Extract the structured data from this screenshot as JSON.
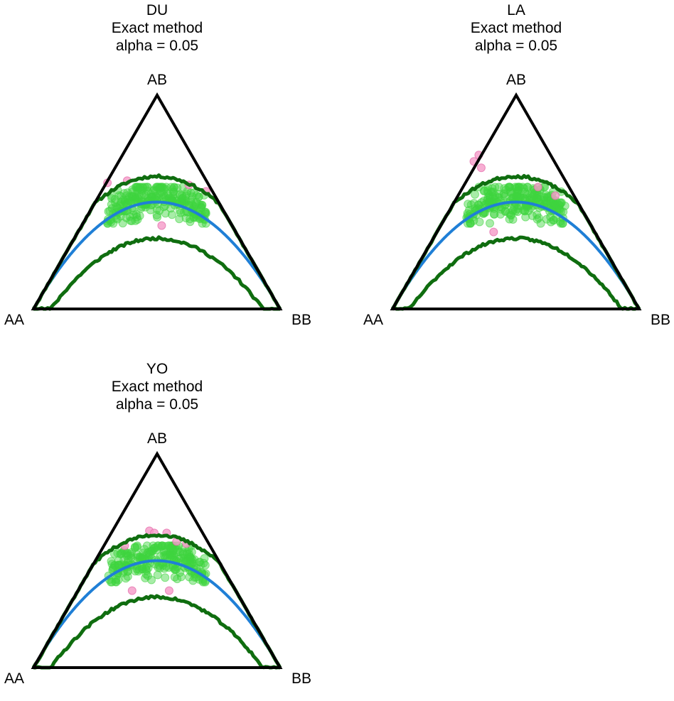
{
  "chart_data": [
    {
      "type": "scatter",
      "subtype": "ternary (de Finetti) plot",
      "population": "DU",
      "title_lines": [
        "DU",
        "Exact method",
        "alpha = 0.05"
      ],
      "vertices": {
        "left": "AA",
        "right": "BB",
        "top": "AB"
      },
      "hwe_curve": true,
      "acceptance_limits": true,
      "seed": 11,
      "point_count": 260,
      "hz_range": [
        0.4,
        0.57
      ],
      "outliers": [
        [
          0.3,
          0.59
        ],
        [
          0.38,
          0.6
        ],
        [
          0.63,
          0.58
        ],
        [
          0.7,
          0.55
        ],
        [
          0.52,
          0.39
        ]
      ],
      "colors": {
        "in_limits": "#3fd43f",
        "outside_limits": "#f59ac8",
        "hwe_curve": "#1f7fd6",
        "limits": "#0f6d0f",
        "triangle": "#000000"
      }
    },
    {
      "type": "scatter",
      "subtype": "ternary (de Finetti) plot",
      "population": "LA",
      "title_lines": [
        "LA",
        "Exact method",
        "alpha = 0.05"
      ],
      "vertices": {
        "left": "AA",
        "right": "BB",
        "top": "AB"
      },
      "hwe_curve": true,
      "acceptance_limits": true,
      "seed": 23,
      "point_count": 260,
      "hz_range": [
        0.4,
        0.57
      ],
      "outliers": [
        [
          0.33,
          0.69
        ],
        [
          0.35,
          0.72
        ],
        [
          0.36,
          0.66
        ],
        [
          0.41,
          0.36
        ],
        [
          0.59,
          0.57
        ],
        [
          0.66,
          0.53
        ]
      ],
      "colors": {
        "in_limits": "#3fd43f",
        "outside_limits": "#f59ac8",
        "hwe_curve": "#1f7fd6",
        "limits": "#0f6d0f",
        "triangle": "#000000"
      }
    },
    {
      "type": "scatter",
      "subtype": "ternary (de Finetti) plot",
      "population": "YO",
      "title_lines": [
        "YO",
        "Exact method",
        "alpha = 0.05"
      ],
      "vertices": {
        "left": "AA",
        "right": "BB",
        "top": "AB"
      },
      "hwe_curve": true,
      "acceptance_limits": true,
      "seed": 37,
      "point_count": 240,
      "hz_range": [
        0.4,
        0.57
      ],
      "outliers": [
        [
          0.47,
          0.64
        ],
        [
          0.49,
          0.63
        ],
        [
          0.54,
          0.63
        ],
        [
          0.58,
          0.59
        ],
        [
          0.62,
          0.58
        ],
        [
          0.37,
          0.57
        ],
        [
          0.4,
          0.36
        ],
        [
          0.55,
          0.36
        ]
      ],
      "colors": {
        "in_limits": "#3fd43f",
        "outside_limits": "#f59ac8",
        "hwe_curve": "#1f7fd6",
        "limits": "#0f6d0f",
        "triangle": "#000000"
      }
    }
  ]
}
